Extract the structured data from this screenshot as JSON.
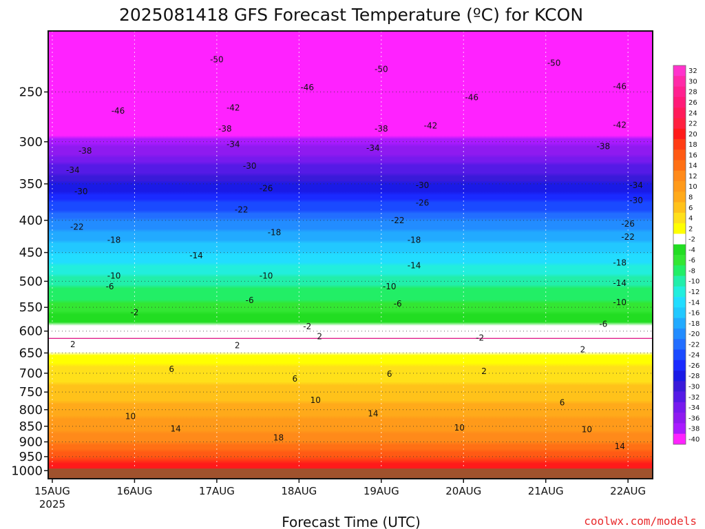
{
  "title": "2025081418 GFS Forecast Temperature (ºC) for KCON",
  "credit": "coolwx.com/models",
  "colors": {
    "ground": "#a0522d",
    "freezing_line": "#e0208c",
    "contour": "#111111"
  },
  "chart_data": {
    "type": "heatmap",
    "title": "2025081418 GFS Forecast Temperature (ºC) for KCON",
    "xlabel": "Forecast Time (UTC)",
    "ylabel": "",
    "x_ticks": [
      {
        "label": "15AUG",
        "sub": "2025",
        "day": 0
      },
      {
        "label": "16AUG",
        "sub": "",
        "day": 1
      },
      {
        "label": "17AUG",
        "sub": "",
        "day": 2
      },
      {
        "label": "18AUG",
        "sub": "",
        "day": 3
      },
      {
        "label": "19AUG",
        "sub": "",
        "day": 4
      },
      {
        "label": "20AUG",
        "sub": "",
        "day": 5
      },
      {
        "label": "21AUG",
        "sub": "",
        "day": 6
      },
      {
        "label": "22AUG",
        "sub": "",
        "day": 7
      }
    ],
    "x_range_days": [
      -0.05,
      7.3
    ],
    "y_axis": "pressure (hPa), log scale, inverted",
    "y_ticks": [
      250,
      300,
      350,
      400,
      450,
      500,
      550,
      600,
      650,
      700,
      750,
      800,
      850,
      900,
      950,
      1000
    ],
    "y_range": [
      200,
      1030
    ],
    "surface_pressure": 1000,
    "colorbar": {
      "levels": [
        32,
        30,
        28,
        26,
        24,
        22,
        20,
        18,
        16,
        14,
        12,
        10,
        8,
        6,
        4,
        2,
        -2,
        -4,
        -6,
        -8,
        -10,
        -12,
        -14,
        -16,
        -18,
        -20,
        -22,
        -24,
        -26,
        -28,
        -30,
        -32,
        -34,
        -36,
        -38,
        -40
      ],
      "colors": [
        "#ff33cc",
        "#ff2aa8",
        "#ff2090",
        "#ff1a78",
        "#ff1a5a",
        "#ff2040",
        "#ff1a1a",
        "#ff3c14",
        "#ff5a14",
        "#ff7014",
        "#ff8a1a",
        "#ff9a1a",
        "#ffaa1a",
        "#ffc21a",
        "#ffe01a",
        "#ffff00",
        "#ffffff",
        "#22dd22",
        "#33e633",
        "#22ee66",
        "#22eeaa",
        "#22eedd",
        "#22ddff",
        "#22c8ff",
        "#22aaff",
        "#228cff",
        "#226eff",
        "#1a4aff",
        "#1a2aff",
        "#1a1ae6",
        "#3a1ad9",
        "#551ae6",
        "#771aee",
        "#8f1af0",
        "#aa1aff",
        "#ff22ff"
      ]
    },
    "profile_1000_to_200": [
      {
        "p": 1000,
        "t": 22
      },
      {
        "p": 950,
        "t": 18
      },
      {
        "p": 900,
        "t": 14
      },
      {
        "p": 850,
        "t": 11
      },
      {
        "p": 800,
        "t": 9
      },
      {
        "p": 750,
        "t": 7
      },
      {
        "p": 700,
        "t": 5
      },
      {
        "p": 650,
        "t": 2
      },
      {
        "p": 600,
        "t": -1
      },
      {
        "p": 550,
        "t": -5
      },
      {
        "p": 500,
        "t": -9
      },
      {
        "p": 450,
        "t": -14
      },
      {
        "p": 400,
        "t": -20
      },
      {
        "p": 350,
        "t": -28
      },
      {
        "p": 300,
        "t": -37
      },
      {
        "p": 250,
        "t": -46
      },
      {
        "p": 200,
        "t": -52
      }
    ],
    "contour_labels": [
      {
        "text": "-50",
        "day": 2.0,
        "p": 222
      },
      {
        "text": "-50",
        "day": 4.0,
        "p": 230
      },
      {
        "text": "-50",
        "day": 6.1,
        "p": 225
      },
      {
        "text": "-46",
        "day": 0.8,
        "p": 268
      },
      {
        "text": "-46",
        "day": 3.1,
        "p": 246
      },
      {
        "text": "-46",
        "day": 5.1,
        "p": 255
      },
      {
        "text": "-46",
        "day": 6.9,
        "p": 245
      },
      {
        "text": "-42",
        "day": 2.2,
        "p": 265
      },
      {
        "text": "-42",
        "day": 4.6,
        "p": 283
      },
      {
        "text": "-42",
        "day": 6.9,
        "p": 282
      },
      {
        "text": "-38",
        "day": 0.4,
        "p": 310
      },
      {
        "text": "-38",
        "day": 2.1,
        "p": 286
      },
      {
        "text": "-38",
        "day": 4.0,
        "p": 286
      },
      {
        "text": "-38",
        "day": 6.7,
        "p": 305
      },
      {
        "text": "-34",
        "day": 0.25,
        "p": 333
      },
      {
        "text": "-34",
        "day": 2.2,
        "p": 303
      },
      {
        "text": "-34",
        "day": 3.9,
        "p": 307
      },
      {
        "text": "-34",
        "day": 7.1,
        "p": 352
      },
      {
        "text": "-30",
        "day": 0.35,
        "p": 360
      },
      {
        "text": "-30",
        "day": 2.4,
        "p": 328
      },
      {
        "text": "-30",
        "day": 4.5,
        "p": 352
      },
      {
        "text": "-30",
        "day": 7.1,
        "p": 372
      },
      {
        "text": "-26",
        "day": 2.6,
        "p": 356
      },
      {
        "text": "-26",
        "day": 4.5,
        "p": 375
      },
      {
        "text": "-26",
        "day": 7.0,
        "p": 405
      },
      {
        "text": "-22",
        "day": 0.3,
        "p": 410
      },
      {
        "text": "-22",
        "day": 2.3,
        "p": 385
      },
      {
        "text": "-22",
        "day": 4.2,
        "p": 400
      },
      {
        "text": "-22",
        "day": 7.0,
        "p": 425
      },
      {
        "text": "-18",
        "day": 0.75,
        "p": 430
      },
      {
        "text": "-18",
        "day": 2.7,
        "p": 418
      },
      {
        "text": "-18",
        "day": 4.4,
        "p": 430
      },
      {
        "text": "-18",
        "day": 6.9,
        "p": 467
      },
      {
        "text": "-14",
        "day": 1.75,
        "p": 455
      },
      {
        "text": "-14",
        "day": 4.4,
        "p": 472
      },
      {
        "text": "-14",
        "day": 6.9,
        "p": 503
      },
      {
        "text": "-10",
        "day": 0.75,
        "p": 490
      },
      {
        "text": "-10",
        "day": 2.6,
        "p": 490
      },
      {
        "text": "-10",
        "day": 4.1,
        "p": 510
      },
      {
        "text": "-10",
        "day": 6.9,
        "p": 540
      },
      {
        "text": "-6",
        "day": 0.7,
        "p": 510
      },
      {
        "text": "-6",
        "day": 2.4,
        "p": 536
      },
      {
        "text": "-6",
        "day": 4.2,
        "p": 543
      },
      {
        "text": "-6",
        "day": 6.7,
        "p": 585
      },
      {
        "text": "-2",
        "day": 1.0,
        "p": 560
      },
      {
        "text": "-2",
        "day": 3.1,
        "p": 590
      },
      {
        "text": "-2",
        "day": 5.2,
        "p": 615
      },
      {
        "text": "2",
        "day": 0.25,
        "p": 630
      },
      {
        "text": "2",
        "day": 2.25,
        "p": 632
      },
      {
        "text": "2",
        "day": 3.25,
        "p": 612
      },
      {
        "text": "2",
        "day": 5.25,
        "p": 695
      },
      {
        "text": "2",
        "day": 6.45,
        "p": 642
      },
      {
        "text": "6",
        "day": 1.45,
        "p": 690
      },
      {
        "text": "6",
        "day": 2.95,
        "p": 715
      },
      {
        "text": "6",
        "day": 4.1,
        "p": 702
      },
      {
        "text": "6",
        "day": 6.2,
        "p": 780
      },
      {
        "text": "10",
        "day": 0.95,
        "p": 820
      },
      {
        "text": "10",
        "day": 3.2,
        "p": 773
      },
      {
        "text": "10",
        "day": 4.95,
        "p": 855
      },
      {
        "text": "10",
        "day": 6.5,
        "p": 860
      },
      {
        "text": "14",
        "day": 1.5,
        "p": 858
      },
      {
        "text": "14",
        "day": 3.9,
        "p": 812
      },
      {
        "text": "14",
        "day": 6.9,
        "p": 915
      },
      {
        "text": "18",
        "day": 2.75,
        "p": 887
      }
    ]
  }
}
